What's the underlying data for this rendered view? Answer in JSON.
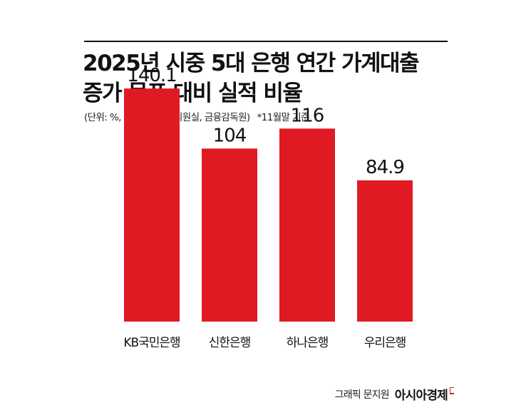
{
  "header": {
    "title_line1": "2025년 시중 5대 은행 연간 가계대출",
    "title_line2": "증가 목표 대비 실적 비율",
    "subtitle": "(단위: %, 출처: 이인영 의원실, 금융감독원)",
    "note": "*11월말 기준"
  },
  "footer": {
    "credit": "그래픽 문지원",
    "brand": "아시아경제"
  },
  "colors": {
    "bar": "#e01a22",
    "text": "#111111",
    "brand_accent": "#e01a22"
  },
  "chart_data": {
    "type": "bar",
    "title": "2025년 시중 5대 은행 연간 가계대출 증가 목표 대비 실적 비율",
    "xlabel": "",
    "ylabel": "",
    "categories": [
      "KB국민은행",
      "신한은행",
      "하나은행",
      "우리은행"
    ],
    "values": [
      140.1,
      104,
      116,
      84.9
    ],
    "value_labels": [
      "140.1",
      "104",
      "116",
      "84.9"
    ],
    "ylim": [
      0,
      150
    ],
    "grid": false,
    "legend": "none"
  }
}
